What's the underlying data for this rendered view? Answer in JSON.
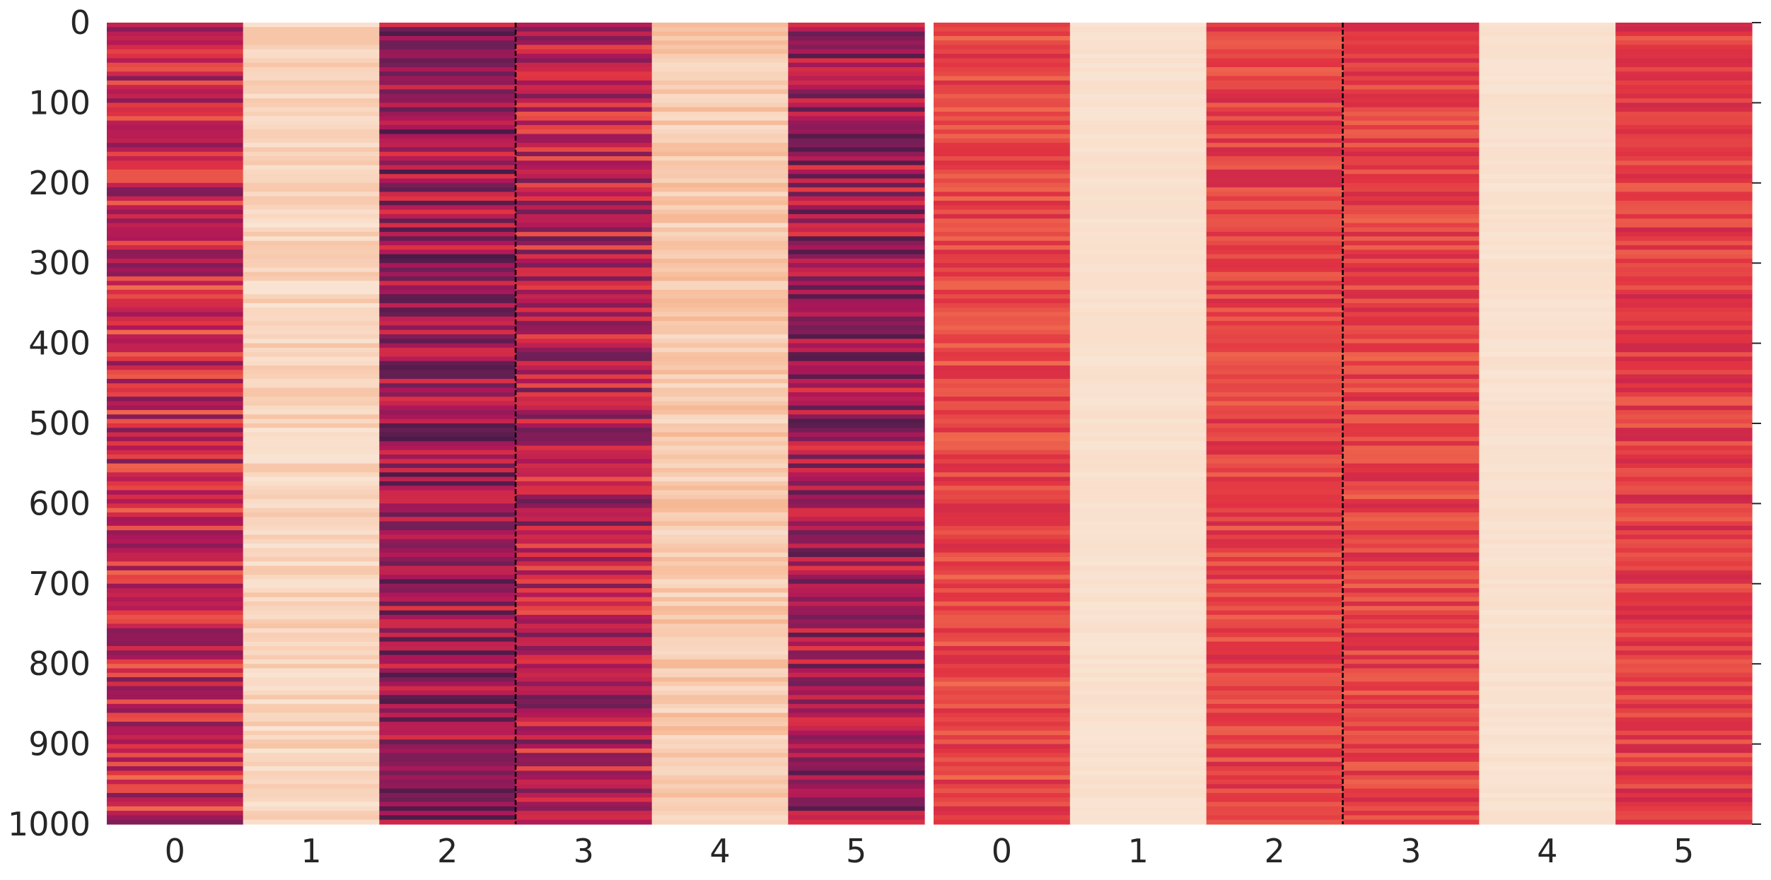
{
  "chart_data": [
    {
      "type": "heatmap",
      "panel": "left",
      "columns": [
        "0",
        "1",
        "2",
        "3",
        "4",
        "5"
      ],
      "row_count": 1000,
      "yticks": [
        "0",
        "100",
        "200",
        "300",
        "400",
        "500",
        "600",
        "700",
        "800",
        "900",
        "1000"
      ],
      "ylim": [
        0,
        1000
      ],
      "divider_after_column": "2",
      "column_appearance": [
        {
          "column": "0",
          "mean_level": 0.58,
          "variation": 0.22
        },
        {
          "column": "1",
          "mean_level": 0.07,
          "variation": 0.05
        },
        {
          "column": "2",
          "mean_level": 0.72,
          "variation": 0.22
        },
        {
          "column": "3",
          "mean_level": 0.64,
          "variation": 0.22
        },
        {
          "column": "4",
          "mean_level": 0.1,
          "variation": 0.06
        },
        {
          "column": "5",
          "mean_level": 0.7,
          "variation": 0.22
        }
      ],
      "colormap": "rocket_r",
      "grid": false
    },
    {
      "type": "heatmap",
      "panel": "right",
      "columns": [
        "0",
        "1",
        "2",
        "3",
        "4",
        "5"
      ],
      "row_count": 1000,
      "ylim": [
        0,
        1000
      ],
      "divider_after_column": "2",
      "column_appearance": [
        {
          "column": "0",
          "mean_level": 0.45,
          "variation": 0.09
        },
        {
          "column": "1",
          "mean_level": 0.03,
          "variation": 0.01
        },
        {
          "column": "2",
          "mean_level": 0.47,
          "variation": 0.09
        },
        {
          "column": "3",
          "mean_level": 0.46,
          "variation": 0.09
        },
        {
          "column": "4",
          "mean_level": 0.03,
          "variation": 0.01
        },
        {
          "column": "5",
          "mean_level": 0.48,
          "variation": 0.09
        }
      ],
      "colormap": "rocket_r",
      "grid": false
    }
  ],
  "colors": {
    "palette": [
      "#faebdd",
      "#f6b48f",
      "#f37651",
      "#e13342",
      "#ad1759",
      "#701f57",
      "#35193e"
    ],
    "divider": "#000000",
    "tick_text": "#262626",
    "background": "#ffffff"
  }
}
